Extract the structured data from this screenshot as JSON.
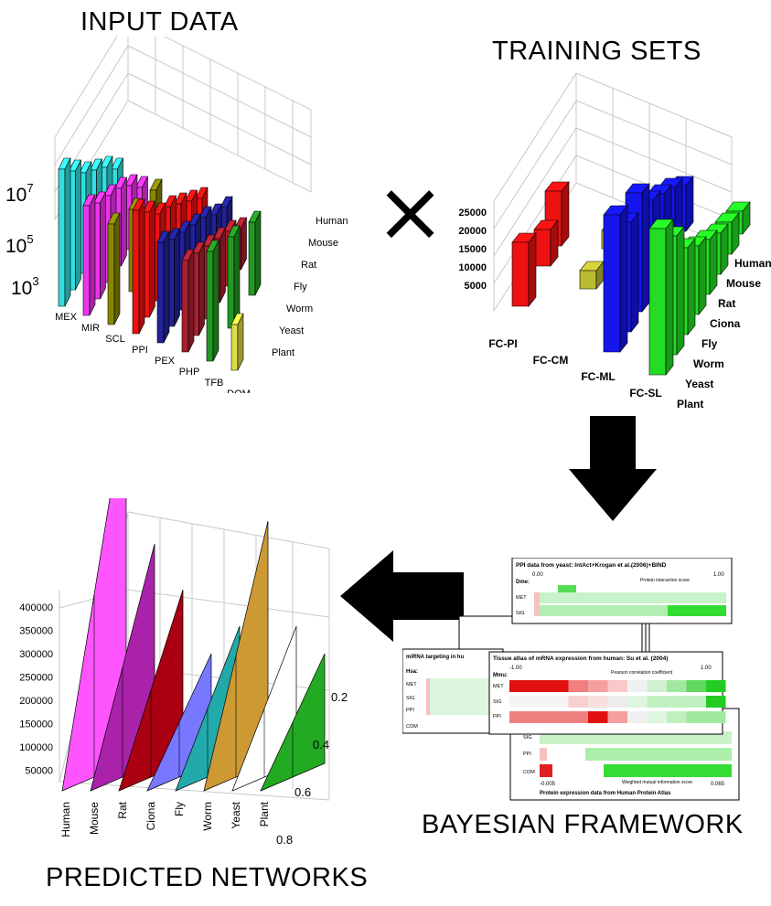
{
  "titles": {
    "input": "INPUT DATA",
    "training": "TRAINING SETS",
    "framework": "BAYESIAN FRAMEWORK",
    "predicted": "PREDICTED NETWORKS"
  },
  "operators": {
    "multiply": "×"
  },
  "input_chart": {
    "type": "bar",
    "scale": "log",
    "y_ticks": [
      "10",
      "10",
      "10"
    ],
    "y_tick_exponents": [
      "7",
      "5",
      "3"
    ],
    "categories": [
      "MEX",
      "MIR",
      "SCL",
      "PPI",
      "PEX",
      "PHP",
      "TFB",
      "DOM"
    ],
    "organisms": [
      "Human",
      "Mouse",
      "Rat",
      "Fly",
      "Worm",
      "Yeast",
      "Plant"
    ],
    "colors": [
      "#33dddd",
      "#ee33ee",
      "#888800",
      "#ee1111",
      "#222299",
      "#aa1f2f",
      "#229922",
      "#dddd44"
    ]
  },
  "training_chart": {
    "type": "bar",
    "y_ticks": [
      "25000",
      "20000",
      "15000",
      "10000",
      "5000"
    ],
    "categories": [
      "FC-PI",
      "FC-CM",
      "FC-ML",
      "FC-SL"
    ],
    "organisms": [
      "Human",
      "Mouse",
      "Rat",
      "Ciona",
      "Fly",
      "Worm",
      "Yeast",
      "Plant"
    ],
    "colors": [
      "#ee1111",
      "#bbbb33",
      "#1515ee",
      "#22dd22"
    ]
  },
  "framework": {
    "panel_top": {
      "title": "PPI data from yeast: IntAct+Krogan et al.(2006)+BIND",
      "organism": "Dme:",
      "scale_min": "0.00",
      "scale_max": "1.00",
      "scale_label": "Protein interaction score",
      "rows": [
        "MET",
        "SIG"
      ]
    },
    "panel_left": {
      "title": "miRNA targeting in hu",
      "organism": "Hsa:",
      "rows": [
        "MET",
        "SIG",
        "PPI",
        "COM"
      ]
    },
    "panel_mid": {
      "title": "Tissue atlas of mRNA expression from human: Su et al. (2004)",
      "organism": "Mmu:",
      "scale_min": "-1.00",
      "scale_max": "1.00",
      "scale_label": "Pearson correlation coefficient",
      "rows": [
        "MET",
        "SIG",
        "PPI"
      ]
    },
    "panel_bottom": {
      "rows": [
        "SIG",
        "PPI",
        "COM"
      ],
      "scale_min": "-0.005",
      "scale_max": "0.065",
      "scale_label": "Weighted mutual information score",
      "caption": "Protein expression data from Human Protein Atlas"
    }
  },
  "predicted_chart": {
    "type": "area",
    "y_ticks": [
      "400000",
      "350000",
      "300000",
      "250000",
      "200000",
      "150000",
      "100000",
      "50000"
    ],
    "z_ticks": [
      "0.2",
      "0.4",
      "0.6",
      "0.8"
    ],
    "organisms": [
      "Human",
      "Mouse",
      "Rat",
      "Ciona",
      "Fly",
      "Worm",
      "Yeast",
      "Plant"
    ],
    "colors": [
      "#ff55ff",
      "#aa22aa",
      "#aa0011",
      "#7777ff",
      "#22aaaa",
      "#cc9933",
      "#ffffff",
      "#22aa22"
    ]
  }
}
